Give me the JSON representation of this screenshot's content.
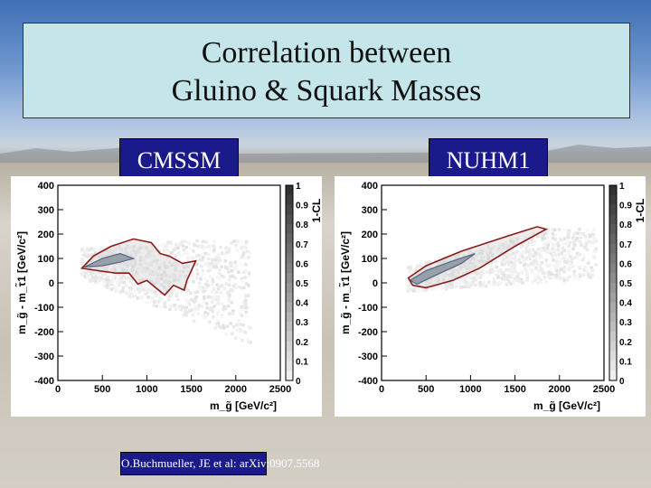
{
  "title": {
    "line1": "Correlation between",
    "line2": "Gluino & Squark Masses"
  },
  "reference": "O.Buchmueller, JE et al: arXiv:0907.5568",
  "colors": {
    "title_box": "#c4e6ea",
    "label_box": "#1b1a8a",
    "contour": "#8b1a1a"
  },
  "chart_data": [
    {
      "type": "heatmap",
      "label": "CMSSM",
      "xlabel": "m_g̃ [GeV/c²]",
      "ylabel": "m_g̃ - m_τ̃1 [GeV/c²]",
      "colorbar_label": "1-CL",
      "xlim": [
        0,
        2500
      ],
      "ylim": [
        -400,
        400
      ],
      "xticks": [
        0,
        500,
        1000,
        1500,
        2000,
        2500
      ],
      "yticks": [
        -400,
        -300,
        -200,
        -100,
        0,
        100,
        200,
        300,
        400
      ],
      "cticks": [
        0,
        0.1,
        0.2,
        0.3,
        0.4,
        0.5,
        0.6,
        0.7,
        0.8,
        0.9,
        1
      ],
      "contour_outer": [
        [
          270,
          60
        ],
        [
          400,
          110
        ],
        [
          600,
          150
        ],
        [
          850,
          180
        ],
        [
          1050,
          165
        ],
        [
          1150,
          120
        ],
        [
          1250,
          110
        ],
        [
          1400,
          80
        ],
        [
          1550,
          90
        ],
        [
          1450,
          10
        ],
        [
          1420,
          -30
        ],
        [
          1300,
          -10
        ],
        [
          1200,
          -50
        ],
        [
          1100,
          -20
        ],
        [
          1000,
          10
        ],
        [
          900,
          -5
        ],
        [
          800,
          40
        ],
        [
          650,
          40
        ],
        [
          450,
          50
        ],
        [
          270,
          60
        ]
      ],
      "contour_inner": [
        [
          300,
          65
        ],
        [
          500,
          100
        ],
        [
          700,
          120
        ],
        [
          850,
          100
        ],
        [
          700,
          85
        ],
        [
          500,
          70
        ],
        [
          300,
          65
        ]
      ],
      "scatter_extent": {
        "x": [
          250,
          2150
        ],
        "y": [
          -280,
          180
        ]
      }
    },
    {
      "type": "heatmap",
      "label": "NUHM1",
      "xlabel": "m_g̃ [GeV/c²]",
      "ylabel": "m_g̃ - m_τ̃1 [GeV/c²]",
      "colorbar_label": "1-CL",
      "xlim": [
        0,
        2500
      ],
      "ylim": [
        -400,
        400
      ],
      "xticks": [
        0,
        500,
        1000,
        1500,
        2000,
        2500
      ],
      "yticks": [
        -400,
        -300,
        -200,
        -100,
        0,
        100,
        200,
        300,
        400
      ],
      "cticks": [
        0,
        0.1,
        0.2,
        0.3,
        0.4,
        0.5,
        0.6,
        0.7,
        0.8,
        0.9,
        1
      ],
      "contour_outer": [
        [
          300,
          20
        ],
        [
          500,
          70
        ],
        [
          900,
          130
        ],
        [
          1400,
          190
        ],
        [
          1750,
          230
        ],
        [
          1850,
          220
        ],
        [
          1500,
          150
        ],
        [
          1100,
          60
        ],
        [
          800,
          10
        ],
        [
          500,
          -20
        ],
        [
          350,
          -10
        ],
        [
          300,
          20
        ]
      ],
      "contour_inner": [
        [
          320,
          10
        ],
        [
          500,
          50
        ],
        [
          800,
          90
        ],
        [
          1050,
          120
        ],
        [
          900,
          80
        ],
        [
          600,
          30
        ],
        [
          400,
          -5
        ],
        [
          320,
          10
        ]
      ],
      "scatter_extent": {
        "x": [
          280,
          2400
        ],
        "y": [
          -280,
          230
        ]
      }
    }
  ]
}
